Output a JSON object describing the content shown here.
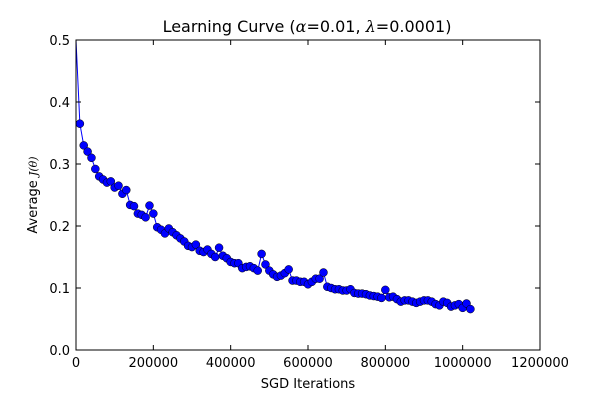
{
  "chart_data": {
    "type": "line",
    "title_prefix": "Learning Curve (",
    "title_alpha_symbol": "α",
    "title_alpha_value": "=0.01, ",
    "title_lambda_symbol": "λ",
    "title_lambda_value": "=0.0001)",
    "xlabel": "SGD Iterations",
    "ylabel_prefix": "Average ",
    "ylabel_math": "J(θ)",
    "xlim": [
      0,
      1200000
    ],
    "ylim": [
      0.0,
      0.5
    ],
    "xticks": [
      0,
      200000,
      400000,
      600000,
      800000,
      1000000,
      1200000
    ],
    "xtick_labels": [
      "0",
      "200000",
      "400000",
      "600000",
      "800000",
      "1000000",
      "1200000"
    ],
    "yticks": [
      0.0,
      0.1,
      0.2,
      0.3,
      0.4,
      0.5
    ],
    "ytick_labels": [
      "0.0",
      "0.1",
      "0.2",
      "0.3",
      "0.4",
      "0.5"
    ],
    "color": "#0000ff",
    "series": [
      {
        "name": "Average J(theta)",
        "x": [
          0,
          10000,
          20000,
          30000,
          40000,
          50000,
          60000,
          70000,
          80000,
          90000,
          100000,
          110000,
          120000,
          130000,
          140000,
          150000,
          160000,
          170000,
          180000,
          190000,
          200000,
          210000,
          220000,
          230000,
          240000,
          250000,
          260000,
          270000,
          280000,
          290000,
          300000,
          310000,
          320000,
          330000,
          340000,
          350000,
          360000,
          370000,
          380000,
          390000,
          400000,
          410000,
          420000,
          430000,
          440000,
          450000,
          460000,
          470000,
          480000,
          490000,
          500000,
          510000,
          520000,
          530000,
          540000,
          550000,
          560000,
          570000,
          580000,
          590000,
          600000,
          610000,
          620000,
          630000,
          640000,
          650000,
          660000,
          670000,
          680000,
          690000,
          700000,
          710000,
          720000,
          730000,
          740000,
          750000,
          760000,
          770000,
          780000,
          790000,
          800000,
          810000,
          820000,
          830000,
          840000,
          850000,
          860000,
          870000,
          880000,
          890000,
          900000,
          910000,
          920000,
          930000,
          940000,
          950000,
          960000,
          970000,
          980000,
          990000,
          1000000,
          1010000,
          1020000
        ],
        "y": [
          0.5,
          0.365,
          0.33,
          0.32,
          0.31,
          0.292,
          0.28,
          0.275,
          0.27,
          0.272,
          0.262,
          0.265,
          0.252,
          0.258,
          0.234,
          0.232,
          0.22,
          0.218,
          0.214,
          0.233,
          0.22,
          0.198,
          0.194,
          0.188,
          0.196,
          0.19,
          0.185,
          0.18,
          0.175,
          0.168,
          0.166,
          0.17,
          0.16,
          0.158,
          0.162,
          0.155,
          0.15,
          0.165,
          0.152,
          0.148,
          0.142,
          0.14,
          0.14,
          0.132,
          0.134,
          0.135,
          0.132,
          0.128,
          0.155,
          0.138,
          0.128,
          0.122,
          0.118,
          0.12,
          0.124,
          0.13,
          0.112,
          0.112,
          0.11,
          0.11,
          0.106,
          0.11,
          0.115,
          0.115,
          0.125,
          0.102,
          0.1,
          0.098,
          0.098,
          0.096,
          0.096,
          0.098,
          0.092,
          0.091,
          0.091,
          0.09,
          0.088,
          0.087,
          0.086,
          0.084,
          0.097,
          0.085,
          0.086,
          0.082,
          0.078,
          0.08,
          0.08,
          0.078,
          0.076,
          0.078,
          0.08,
          0.08,
          0.078,
          0.074,
          0.072,
          0.078,
          0.076,
          0.07,
          0.072,
          0.074,
          0.068,
          0.075,
          0.066
        ]
      }
    ]
  }
}
